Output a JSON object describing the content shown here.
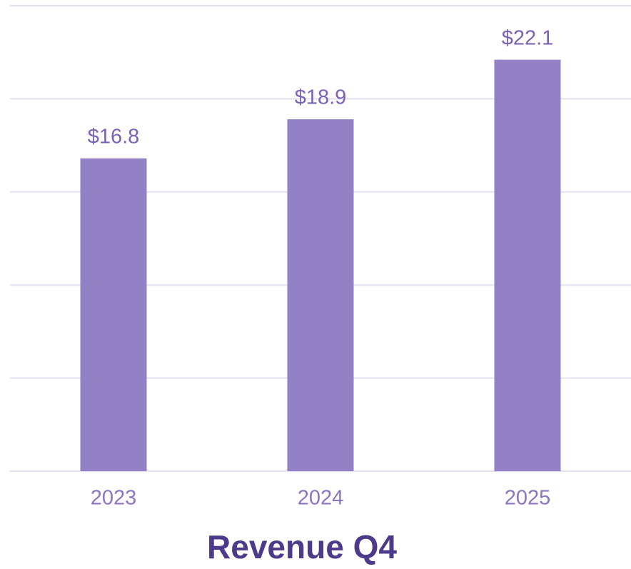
{
  "chart_data": {
    "type": "bar",
    "title": "Revenue Q4",
    "categories": [
      "2023",
      "2024",
      "2025"
    ],
    "values": [
      16.8,
      18.9,
      22.1
    ],
    "value_labels": [
      "$16.8",
      "$18.9",
      "$22.1"
    ],
    "color": "#9381c5",
    "ylim": [
      0,
      25
    ],
    "yticks": [
      0,
      5,
      10,
      15,
      20,
      25
    ],
    "grid": true
  }
}
